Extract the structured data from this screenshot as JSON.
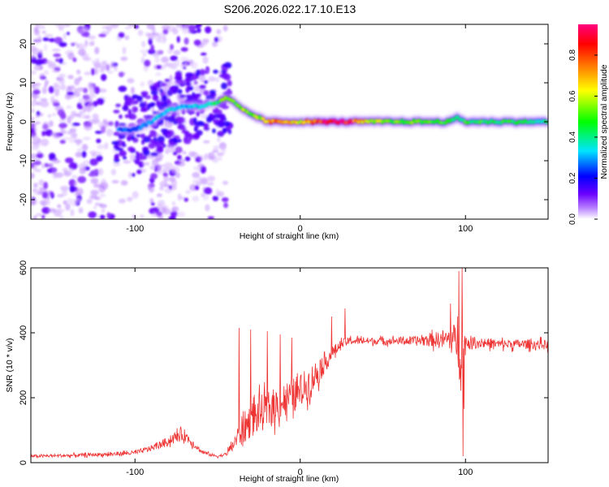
{
  "chart_data": [
    {
      "type": "heatmap",
      "title": "S206.2026.022.17.10.E13",
      "xlabel": "Height of straight line (km)",
      "ylabel": "Frequency (Hz)",
      "xlim": [
        -163,
        150
      ],
      "ylim": [
        -25,
        25
      ],
      "xticks": [
        -100,
        0,
        100
      ],
      "xtick_labels": [
        "-100",
        "0",
        "100"
      ],
      "yticks": [
        -20,
        -10,
        0,
        10,
        20
      ],
      "ytick_labels": [
        "-20",
        "-10",
        "0",
        "10",
        "20"
      ],
      "colorbar": {
        "label": "Normalized spectral amplitude",
        "range": [
          0.0,
          0.95
        ],
        "ticks": [
          0.0,
          0.2,
          0.4,
          0.6,
          0.8
        ],
        "tick_labels": [
          "0.0",
          "0.2",
          "0.4",
          "0.6",
          "0.8"
        ],
        "colors": [
          "#ffffff",
          "#b57bff",
          "#6a00ff",
          "#0000ff",
          "#00e5ff",
          "#00ff00",
          "#ffff00",
          "#ff8000",
          "#ff0000",
          "#ff0080"
        ]
      },
      "ridge": {
        "x": [
          -100,
          -90,
          -80,
          -70,
          -60,
          -50,
          -45,
          -40,
          -35,
          -30,
          -25,
          -20,
          -10,
          0,
          10,
          20,
          30,
          40,
          60,
          80,
          90,
          95,
          100,
          120,
          150
        ],
        "freq": [
          -2,
          0,
          3,
          4,
          4,
          5,
          6,
          5,
          3,
          2,
          1,
          0,
          0,
          0,
          0,
          0,
          0,
          0,
          0,
          0,
          0,
          1,
          0,
          0,
          0
        ],
        "amplitude": [
          0.25,
          0.3,
          0.35,
          0.3,
          0.35,
          0.45,
          0.55,
          0.5,
          0.55,
          0.5,
          0.55,
          0.7,
          0.75,
          0.6,
          0.85,
          0.9,
          0.9,
          0.6,
          0.5,
          0.5,
          0.5,
          0.4,
          0.45,
          0.45,
          0.4
        ]
      }
    },
    {
      "type": "line",
      "xlabel": "Height of straight line (km)",
      "ylabel": "SNR (10 * v/v)",
      "xlim": [
        -163,
        150
      ],
      "ylim": [
        0,
        600
      ],
      "xticks": [
        -100,
        0,
        100
      ],
      "xtick_labels": [
        "-100",
        "0",
        "100"
      ],
      "yticks": [
        0,
        200,
        400,
        600
      ],
      "ytick_labels": [
        "0",
        "200",
        "400",
        "600"
      ],
      "color": "#ee3333",
      "envelope": {
        "x": [
          -163,
          -140,
          -120,
          -100,
          -90,
          -80,
          -75,
          -70,
          -65,
          -60,
          -55,
          -50,
          -45,
          -40,
          -35,
          -30,
          -25,
          -20,
          -15,
          -10,
          -5,
          0,
          5,
          10,
          15,
          20,
          25,
          30,
          40,
          50,
          60,
          70,
          80,
          90,
          95,
          97,
          99,
          100,
          110,
          120,
          130,
          140,
          150
        ],
        "baseline": [
          20,
          22,
          25,
          30,
          45,
          65,
          80,
          85,
          60,
          35,
          25,
          20,
          25,
          60,
          100,
          130,
          150,
          160,
          175,
          190,
          205,
          220,
          245,
          275,
          310,
          340,
          365,
          375,
          375,
          375,
          375,
          375,
          378,
          380,
          375,
          340,
          300,
          370,
          370,
          365,
          365,
          365,
          362
        ],
        "noise": [
          8,
          8,
          10,
          12,
          15,
          25,
          30,
          30,
          20,
          10,
          8,
          6,
          10,
          40,
          80,
          90,
          95,
          95,
          95,
          95,
          90,
          90,
          80,
          75,
          55,
          35,
          25,
          20,
          18,
          18,
          20,
          25,
          35,
          60,
          100,
          200,
          250,
          40,
          25,
          25,
          25,
          25,
          25
        ]
      },
      "peaks": [
        {
          "x": -37,
          "y": 415
        },
        {
          "x": -30,
          "y": 410
        },
        {
          "x": -20,
          "y": 405
        },
        {
          "x": -12,
          "y": 395
        },
        {
          "x": -5,
          "y": 385
        },
        {
          "x": 19,
          "y": 450
        },
        {
          "x": 27,
          "y": 475
        },
        {
          "x": 91,
          "y": 490
        },
        {
          "x": 96,
          "y": 590
        },
        {
          "x": 98,
          "y": 600
        },
        {
          "x": 98.5,
          "y": 20
        }
      ]
    }
  ]
}
